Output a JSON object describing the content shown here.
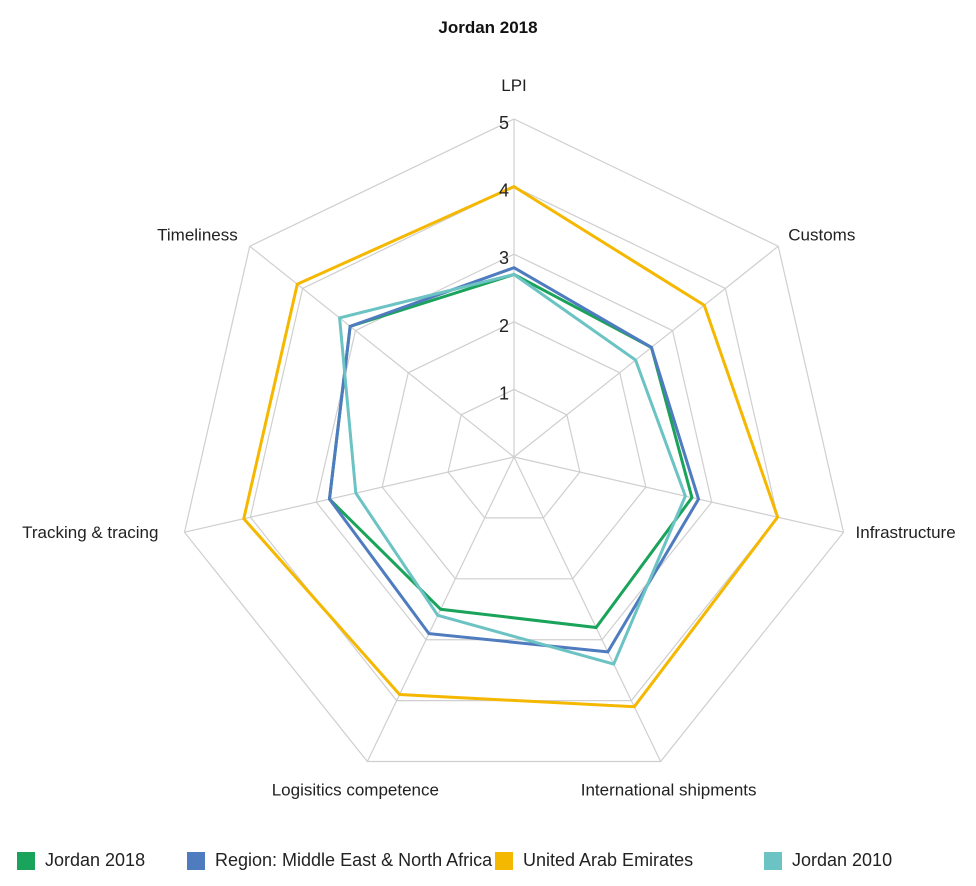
{
  "chart_data": {
    "type": "radar",
    "title": "Jordan 2018",
    "axes": [
      "LPI",
      "Customs",
      "Infrastructure",
      "International shipments",
      "Logisitics competence",
      "Tracking & tracing",
      "Timeliness"
    ],
    "rlim": [
      0,
      5
    ],
    "ticks": [
      "1",
      "2",
      "3",
      "4",
      "5"
    ],
    "grid": true,
    "legend_position": "bottom",
    "series": [
      {
        "name": "Jordan 2018",
        "color": "#1aa35a",
        "values": [
          2.7,
          2.6,
          2.7,
          2.8,
          2.5,
          2.8,
          3.1
        ]
      },
      {
        "name": "Region: Middle East & North Africa",
        "color": "#4f7bbf",
        "values": [
          2.8,
          2.6,
          2.8,
          3.2,
          2.9,
          2.8,
          3.1
        ]
      },
      {
        "name": "United Arab Emirates",
        "color": "#f5b800",
        "values": [
          4.0,
          3.6,
          4.0,
          4.1,
          3.9,
          4.1,
          4.1
        ]
      },
      {
        "name": "Jordan 2010",
        "color": "#6cc3c4",
        "values": [
          2.7,
          2.3,
          2.6,
          3.4,
          2.6,
          2.4,
          3.3
        ]
      }
    ]
  }
}
